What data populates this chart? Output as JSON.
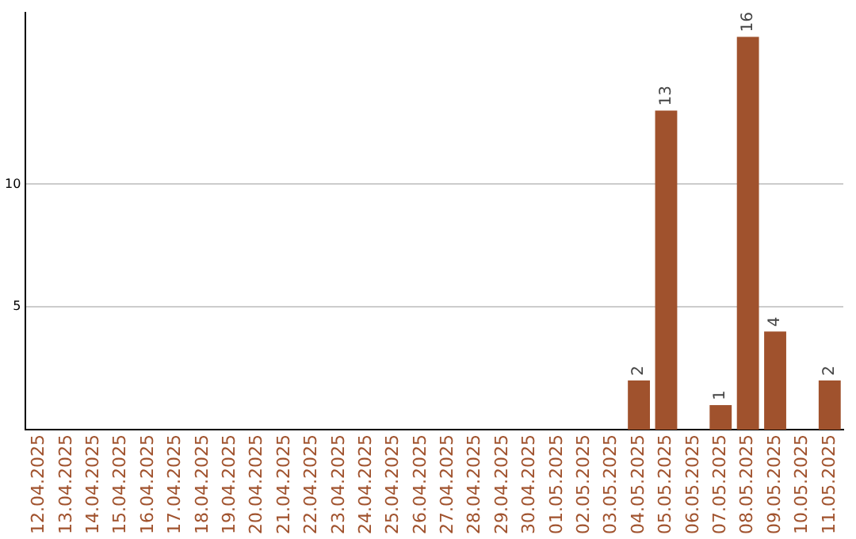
{
  "chart_data": {
    "type": "bar",
    "categories": [
      "12.04.2025",
      "13.04.2025",
      "14.04.2025",
      "15.04.2025",
      "16.04.2025",
      "17.04.2025",
      "18.04.2025",
      "19.04.2025",
      "20.04.2025",
      "21.04.2025",
      "22.04.2025",
      "23.04.2025",
      "24.04.2025",
      "25.04.2025",
      "26.04.2025",
      "27.04.2025",
      "28.04.2025",
      "29.04.2025",
      "30.04.2025",
      "01.05.2025",
      "02.05.2025",
      "03.05.2025",
      "04.05.2025",
      "05.05.2025",
      "06.05.2025",
      "07.05.2025",
      "08.05.2025",
      "09.05.2025",
      "10.05.2025",
      "11.05.2025"
    ],
    "values": [
      0,
      0,
      0,
      0,
      0,
      0,
      0,
      0,
      0,
      0,
      0,
      0,
      0,
      0,
      0,
      0,
      0,
      0,
      0,
      0,
      0,
      0,
      2,
      13,
      0,
      1,
      16,
      4,
      0,
      2
    ],
    "value_labels": [
      null,
      null,
      null,
      null,
      null,
      null,
      null,
      null,
      null,
      null,
      null,
      null,
      null,
      null,
      null,
      null,
      null,
      null,
      null,
      null,
      null,
      null,
      "2",
      "13",
      null,
      "1",
      "16",
      "4",
      null,
      "2"
    ],
    "color": "#a0522d",
    "ylim": [
      0,
      17
    ],
    "yticks": [
      5,
      10
    ],
    "grid": "y",
    "legend": false
  }
}
